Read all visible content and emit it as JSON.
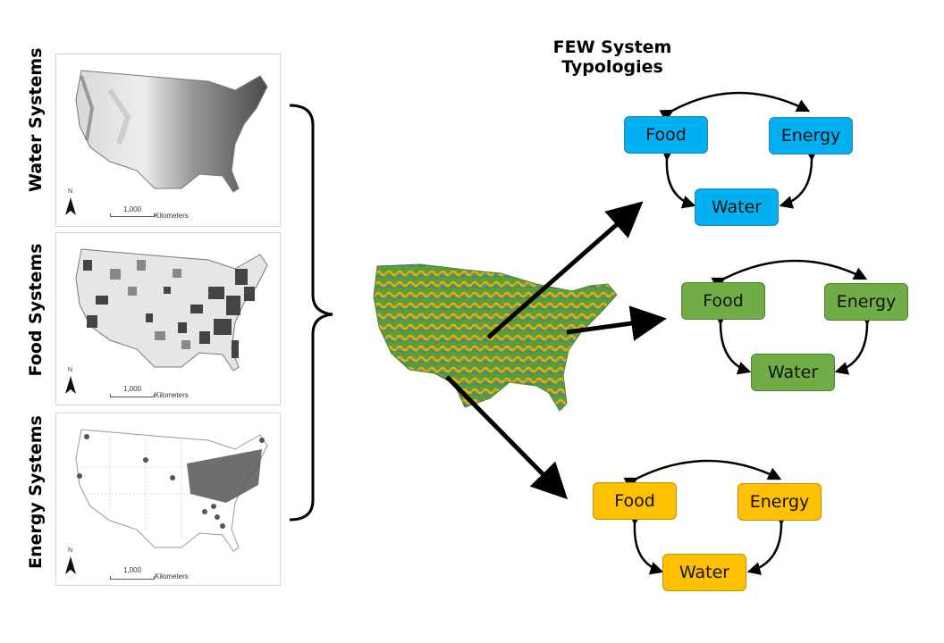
{
  "title": "FEW System Typologies",
  "panels": [
    {
      "label": "Water Systems",
      "scale_value": "1,000",
      "scale_unit": "Kilometers",
      "north": "N"
    },
    {
      "label": "Food Systems",
      "scale_value": "1,000",
      "scale_unit": "Kilometers",
      "north": "N"
    },
    {
      "label": "Energy Systems",
      "scale_value": "1,000",
      "scale_unit": "Kilometers",
      "north": "N"
    }
  ],
  "typologies": [
    {
      "color": "#00b0f0",
      "food": "Food",
      "energy": "Energy",
      "water": "Water"
    },
    {
      "color": "#70ad47",
      "food": "Food",
      "energy": "Energy",
      "water": "Water"
    },
    {
      "color": "#ffc000",
      "food": "Food",
      "energy": "Energy",
      "water": "Water"
    }
  ]
}
